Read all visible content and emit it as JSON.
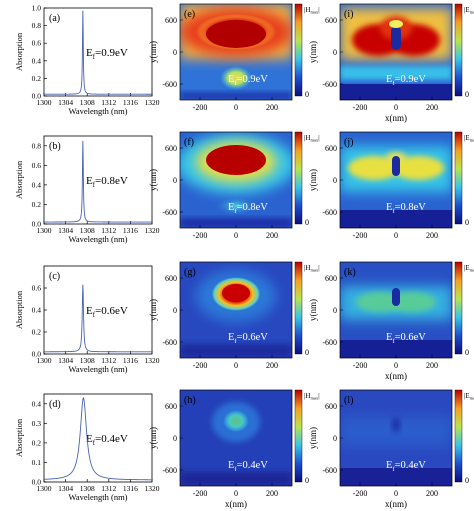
{
  "chart_data": [
    {
      "type": "line",
      "panel": "(a)",
      "annotation": "E",
      "annotation_sub": "f",
      "annotation_value": "=0.9eV",
      "xlabel": "Wavelength (nm)",
      "ylabel": "Absorption",
      "xlim": [
        1300,
        1320
      ],
      "ylim": [
        0,
        1
      ],
      "x_ticks": [
        "1300",
        "1304",
        "1308",
        "1312",
        "1316",
        "1320"
      ],
      "y_ticks": [
        "0.0",
        "0.2",
        "0.4",
        "0.6",
        "0.8",
        "1.0"
      ],
      "peak_x": 1307.2,
      "peak_y": 0.97,
      "half_width": 0.09,
      "baseline": 0.02
    },
    {
      "type": "line",
      "panel": "(b)",
      "annotation": "E",
      "annotation_sub": "f",
      "annotation_value": "=0.8eV",
      "xlabel": "Wavelength (nm)",
      "ylabel": "Absorption",
      "xlim": [
        1300,
        1320
      ],
      "ylim": [
        0,
        0.9
      ],
      "x_ticks": [
        "1300",
        "1304",
        "1308",
        "1312",
        "1316",
        "1320"
      ],
      "y_ticks": [
        "0.0",
        "0.2",
        "0.4",
        "0.6",
        "0.8"
      ],
      "peak_x": 1307.2,
      "peak_y": 0.85,
      "half_width": 0.1,
      "baseline": 0.02
    },
    {
      "type": "line",
      "panel": "(c)",
      "annotation": "E",
      "annotation_sub": "f",
      "annotation_value": "=0.6eV",
      "xlabel": "Wavelength (nm)",
      "ylabel": "Absorption",
      "xlim": [
        1300,
        1320
      ],
      "ylim": [
        0,
        0.8
      ],
      "x_ticks": [
        "1300",
        "1304",
        "1308",
        "1312",
        "1316",
        "1320"
      ],
      "y_ticks": [
        "0.0",
        "0.2",
        "0.4",
        "0.6"
      ],
      "peak_x": 1307.2,
      "peak_y": 0.63,
      "half_width": 0.14,
      "baseline": 0.02
    },
    {
      "type": "line",
      "panel": "(d)",
      "annotation": "E",
      "annotation_sub": "f",
      "annotation_value": "=0.4eV",
      "xlabel": "Wavelength (nm)",
      "ylabel": "Absorption",
      "xlim": [
        1300,
        1320
      ],
      "ylim": [
        0,
        0.45
      ],
      "x_ticks": [
        "1300",
        "1304",
        "1308",
        "1312",
        "1316",
        "1320"
      ],
      "y_ticks": [
        "0.0",
        "0.1",
        "0.2",
        "0.3",
        "0.4"
      ],
      "peak_x": 1307.3,
      "peak_y": 0.43,
      "half_width": 0.7,
      "baseline": 0.01
    },
    {
      "type": "heatmap",
      "panel": "(e)",
      "field_label": "|H",
      "field_sub": "max",
      "annotation": "E",
      "annotation_sub": "f",
      "annotation_value": "=0.9eV",
      "xlabel": "x(nm)",
      "ylabel": "y(nm)",
      "x_ticks": [
        "-200",
        "0",
        "200"
      ],
      "y_ticks": [
        "600",
        "0",
        "-600"
      ],
      "colorbar_ticks": [
        "0"
      ],
      "show_xlabel": false
    },
    {
      "type": "heatmap",
      "panel": "(f)",
      "field_label": "|H",
      "field_sub": "max",
      "annotation": "E",
      "annotation_sub": "f",
      "annotation_value": "=0.8eV",
      "xlabel": "x(nm)",
      "ylabel": "y(nm)",
      "x_ticks": [
        "-200",
        "0",
        "200"
      ],
      "y_ticks": [
        "600",
        "0",
        "-600"
      ],
      "colorbar_ticks": [
        "0"
      ],
      "show_xlabel": false
    },
    {
      "type": "heatmap",
      "panel": "(g)",
      "field_label": "|H",
      "field_sub": "max",
      "annotation": "E",
      "annotation_sub": "f",
      "annotation_value": "=0.6eV",
      "xlabel": "x(nm)",
      "ylabel": "y(nm)",
      "x_ticks": [
        "-200",
        "0",
        "200"
      ],
      "y_ticks": [
        "600",
        "0",
        "-600"
      ],
      "colorbar_ticks": [
        "0"
      ],
      "show_xlabel": false
    },
    {
      "type": "heatmap",
      "panel": "(h)",
      "field_label": "|H",
      "field_sub": "max",
      "annotation": "E",
      "annotation_sub": "f",
      "annotation_value": "=0.4eV",
      "xlabel": "x(nm)",
      "ylabel": "y(nm)",
      "x_ticks": [
        "-200",
        "0",
        "200"
      ],
      "y_ticks": [
        "600",
        "0",
        "-600"
      ],
      "colorbar_ticks": [
        "0"
      ],
      "show_xlabel": true
    },
    {
      "type": "heatmap",
      "panel": "(i)",
      "field_label": "|E",
      "field_sub": "max",
      "annotation": "E",
      "annotation_sub": "f",
      "annotation_value": "=0.9eV",
      "xlabel": "x(nm)",
      "ylabel": "y(nm)",
      "x_ticks": [
        "-200",
        "0",
        "200"
      ],
      "y_ticks": [
        "600",
        "0",
        "-600"
      ],
      "colorbar_ticks": [
        "0"
      ],
      "show_xlabel": true
    },
    {
      "type": "heatmap",
      "panel": "(j)",
      "field_label": "|E",
      "field_sub": "max",
      "annotation": "E",
      "annotation_sub": "f",
      "annotation_value": "=0.8eV",
      "xlabel": "x(nm)",
      "ylabel": "y(nm)",
      "x_ticks": [
        "-200",
        "0",
        "200"
      ],
      "y_ticks": [
        "600",
        "0",
        "-600"
      ],
      "colorbar_ticks": [
        "0"
      ],
      "show_xlabel": false
    },
    {
      "type": "heatmap",
      "panel": "(k)",
      "field_label": "|E",
      "field_sub": "max",
      "annotation": "E",
      "annotation_sub": "f",
      "annotation_value": "=0.6eV",
      "xlabel": "x(nm)",
      "ylabel": "y(nm)",
      "x_ticks": [
        "-200",
        "0",
        "200"
      ],
      "y_ticks": [
        "600",
        "0",
        "-600"
      ],
      "colorbar_ticks": [
        "0"
      ],
      "show_xlabel": true
    },
    {
      "type": "heatmap",
      "panel": "(l)",
      "field_label": "|E",
      "field_sub": "max",
      "annotation": "E",
      "annotation_sub": "f",
      "annotation_value": "=0.4eV",
      "xlabel": "x(nm)",
      "ylabel": "y(nm)",
      "x_ticks": [
        "-200",
        "0",
        "200"
      ],
      "y_ticks": [
        "600",
        "0",
        "-600"
      ],
      "colorbar_ticks": [
        "0"
      ],
      "show_xlabel": true
    }
  ],
  "colors": {
    "curve": "#4a62b0",
    "jet_low": "#1a1a8c",
    "jet_mid": "#3cc4e0",
    "jet_high": "#c00000"
  }
}
